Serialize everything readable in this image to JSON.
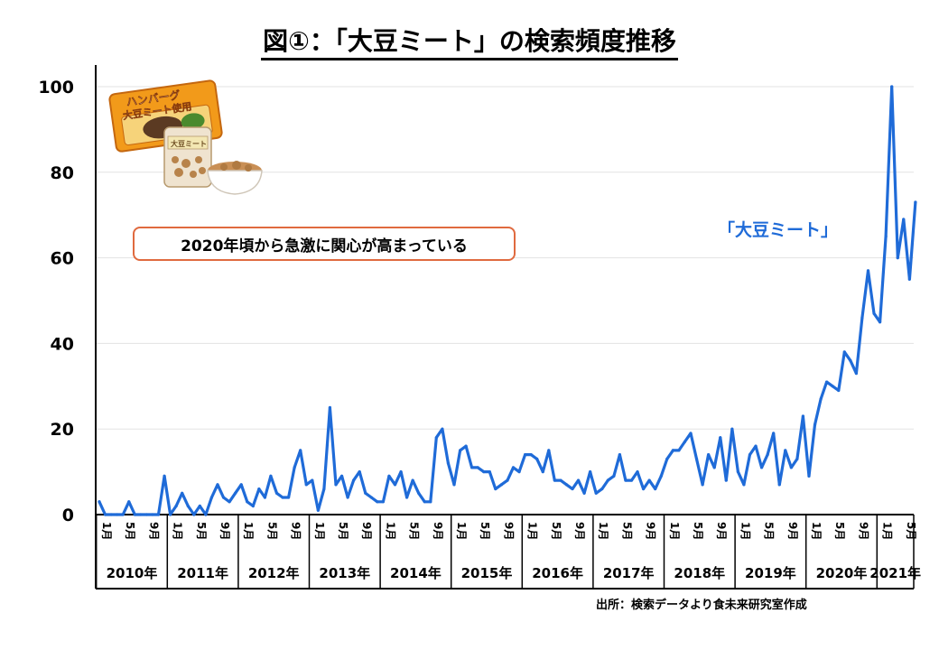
{
  "title": "図①：「大豆ミート」の検索頻度推移",
  "annotation": "2020年頃から急激に関心が高まっている",
  "source_note": "出所：検索データより食未来研究室作成",
  "illustration": {
    "package_label": "ハンバーグ",
    "package_sub_label": "大豆ミート使用",
    "bag_label": "大豆ミート"
  },
  "colors": {
    "line": "#1f6bd8",
    "callout_border": "#e06a3f",
    "axis": "#000000",
    "grid": "#e3e3e3"
  },
  "chart_data": {
    "type": "line",
    "title": "図①：「大豆ミート」の検索頻度推移",
    "xlabel": "",
    "ylabel": "",
    "ylim": [
      0,
      100
    ],
    "yticks": [
      0,
      20,
      40,
      60,
      80,
      100
    ],
    "grid": true,
    "month_tick_labels": [
      "1月",
      "5月",
      "9月"
    ],
    "years": [
      "2010年",
      "2011年",
      "2012年",
      "2013年",
      "2014年",
      "2015年",
      "2016年",
      "2017年",
      "2018年",
      "2019年",
      "2020年",
      "2021年"
    ],
    "series": [
      {
        "name": "「大豆ミート」",
        "values": [
          3,
          0,
          0,
          0,
          0,
          3,
          0,
          0,
          0,
          0,
          0,
          9,
          0,
          2,
          5,
          2,
          0,
          2,
          0,
          4,
          7,
          4,
          3,
          5,
          7,
          3,
          2,
          6,
          4,
          9,
          5,
          4,
          4,
          11,
          15,
          7,
          8,
          1,
          6,
          25,
          7,
          9,
          4,
          8,
          10,
          5,
          4,
          3,
          3,
          9,
          7,
          10,
          4,
          8,
          5,
          3,
          3,
          18,
          20,
          12,
          7,
          15,
          16,
          11,
          11,
          10,
          10,
          6,
          7,
          8,
          11,
          10,
          14,
          14,
          13,
          10,
          15,
          8,
          8,
          7,
          6,
          8,
          5,
          10,
          5,
          6,
          8,
          9,
          14,
          8,
          8,
          10,
          6,
          8,
          6,
          9,
          13,
          15,
          15,
          17,
          19,
          13,
          7,
          14,
          11,
          18,
          8,
          20,
          10,
          7,
          14,
          16,
          11,
          14,
          19,
          7,
          15,
          11,
          13,
          23,
          9,
          21,
          27,
          31,
          30,
          29,
          38,
          36,
          33,
          46,
          57,
          47,
          45,
          65,
          100,
          60,
          69,
          55,
          73
        ]
      }
    ]
  }
}
